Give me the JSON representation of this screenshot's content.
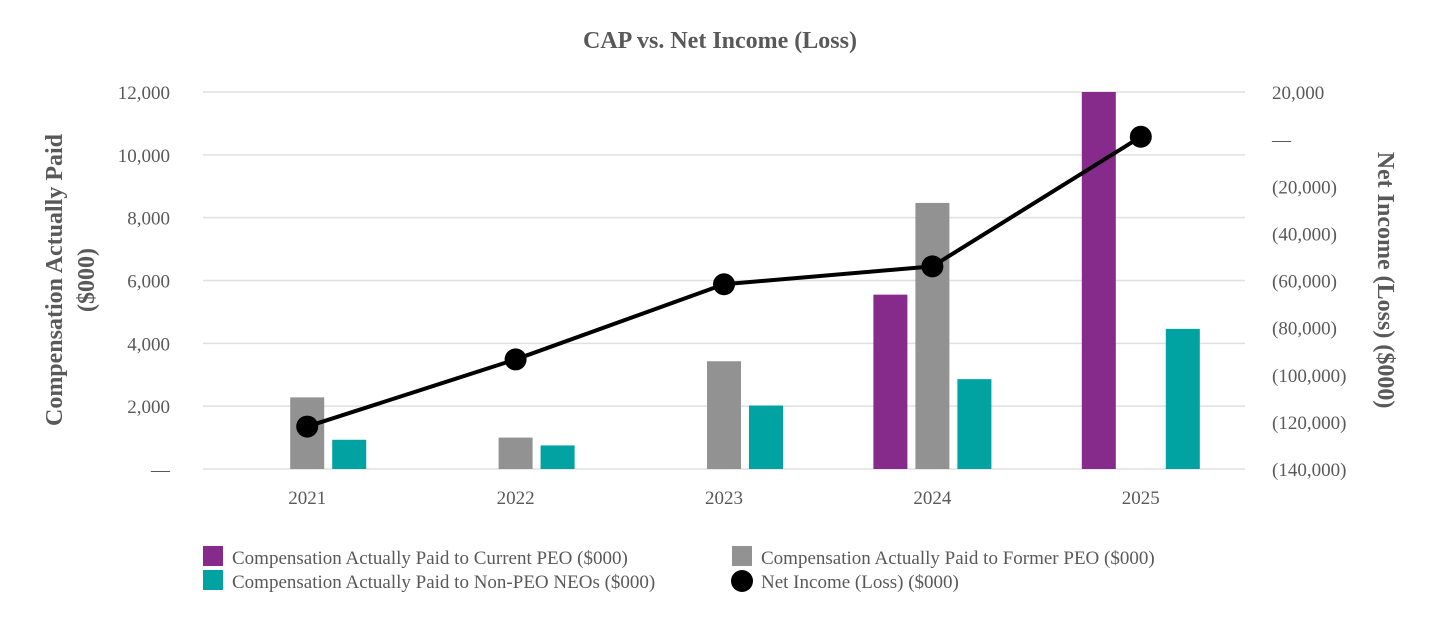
{
  "chart_data": {
    "type": "bar",
    "title": "CAP vs. Net Income (Loss)",
    "categories": [
      "2021",
      "2022",
      "2023",
      "2024",
      "2025"
    ],
    "ylabel": "Compensation Actually Paid ($000)",
    "y2label": "Net Income (Loss) ($000)",
    "ylim": [
      0,
      12000
    ],
    "y2lim": [
      -140000,
      20000
    ],
    "yticks": [
      "—",
      "2,000",
      "4,000",
      "6,000",
      "8,000",
      "10,000",
      "12,000"
    ],
    "y2ticks": [
      "(140,000)",
      "(120,000)",
      "(100,000)",
      "(80,000)",
      "(60,000)",
      "(40,000)",
      "(20,000)",
      "—",
      "20,000"
    ],
    "grid": true,
    "legend_position": "bottom",
    "series": [
      {
        "name": "Compensation Actually Paid to Current PEO ($000)",
        "type": "bar",
        "axis": "left",
        "color": "#862a8c",
        "values": [
          null,
          null,
          null,
          5550,
          12000
        ]
      },
      {
        "name": "Compensation Actually Paid to Former PEO ($000)",
        "type": "bar",
        "axis": "left",
        "color": "#929292",
        "values": [
          2280,
          1000,
          3430,
          8470,
          null
        ]
      },
      {
        "name": "Compensation Actually Paid to Non-PEO NEOs ($000)",
        "type": "bar",
        "axis": "left",
        "color": "#00a2a2",
        "values": [
          930,
          750,
          2020,
          2860,
          4460
        ]
      },
      {
        "name": "Net Income (Loss) ($000)",
        "type": "line",
        "axis": "right",
        "color": "#000000",
        "values": [
          -122000,
          -93500,
          -61600,
          -54000,
          1000
        ]
      }
    ]
  }
}
